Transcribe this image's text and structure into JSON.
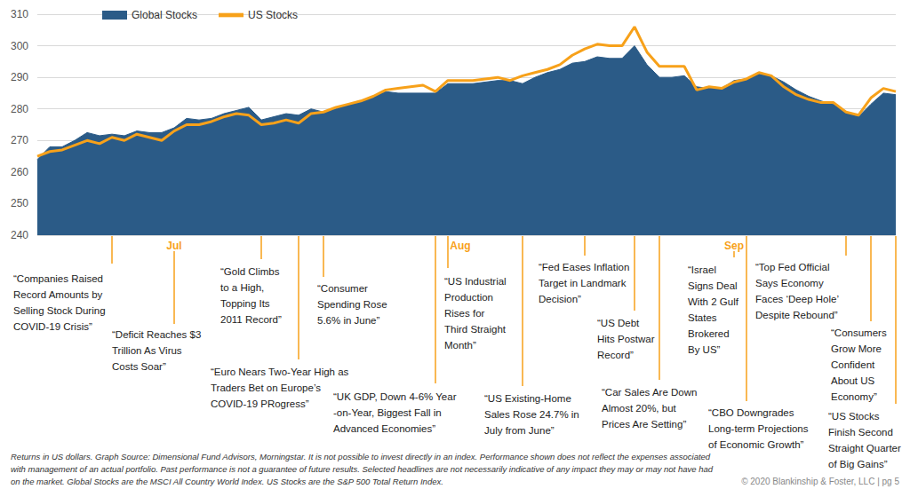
{
  "chart_data": {
    "type": "line",
    "categories": [
      null,
      null,
      null,
      null,
      null,
      null,
      null,
      null,
      null,
      null,
      null,
      "Jul",
      null,
      null,
      null,
      null,
      null,
      null,
      null,
      null,
      null,
      null,
      null,
      null,
      null,
      null,
      null,
      null,
      null,
      null,
      null,
      null,
      null,
      null,
      "Aug",
      null,
      null,
      null,
      null,
      null,
      null,
      null,
      null,
      null,
      null,
      null,
      null,
      null,
      null,
      null,
      null,
      null,
      null,
      null,
      null,
      null,
      "Sep",
      null,
      null,
      null,
      null,
      null,
      null,
      null,
      null,
      null,
      null,
      null,
      null,
      null
    ],
    "series": [
      {
        "name": "Global Stocks",
        "type": "area",
        "color": "#2b5b87",
        "values": [
          264,
          268,
          268,
          270,
          272.5,
          271.5,
          272,
          271.5,
          273,
          272.5,
          272.5,
          274,
          277,
          276.5,
          277,
          278.5,
          279.5,
          280.5,
          276.5,
          277.5,
          278.5,
          278,
          280,
          279,
          280,
          281.5,
          282.5,
          284,
          285.5,
          285,
          285,
          285,
          285,
          288,
          288,
          288,
          288.5,
          289,
          289,
          288,
          290,
          291.5,
          292.5,
          294.5,
          295,
          296.5,
          296,
          296,
          300,
          294,
          290,
          290,
          290.5,
          287,
          286.5,
          286.5,
          289,
          289.5,
          291,
          290.5,
          288.5,
          286,
          284,
          282.5,
          281.5,
          279,
          277.5,
          281.5,
          285,
          284.5
        ]
      },
      {
        "name": "US Stocks",
        "type": "line",
        "color": "#f7a11a",
        "values": [
          265,
          266.5,
          267,
          268.5,
          270,
          269,
          271,
          270,
          272,
          271,
          270,
          273,
          275,
          275,
          276,
          277.5,
          278.5,
          278,
          275,
          275.5,
          276.5,
          275.5,
          278.5,
          279,
          280.5,
          281.5,
          282.5,
          284,
          286,
          286.5,
          287,
          287.5,
          285.5,
          289,
          289,
          289,
          289.5,
          290,
          289,
          290.5,
          291.5,
          292.5,
          294,
          297,
          299,
          300.5,
          300,
          300,
          306,
          298,
          293.5,
          293.5,
          293.5,
          286,
          287,
          286.5,
          288.5,
          289.5,
          291.5,
          290.5,
          287,
          284.5,
          283,
          282,
          282,
          279,
          278,
          283.5,
          286.5,
          285.5
        ]
      }
    ],
    "ylim": [
      240,
      310
    ],
    "yticks": [
      240,
      250,
      260,
      270,
      280,
      290,
      300,
      310
    ],
    "grid": true,
    "legend": "top-left",
    "annotations": [
      {
        "at": 6,
        "lines": [
          "“Companies Raised",
          "Record Amounts by",
          "Selling Stock During",
          "COVID-19 Crisis”"
        ]
      },
      {
        "at": 11,
        "lines": [
          "“Deficit Reaches $3",
          "Trillion As Virus",
          "Costs Soar”"
        ]
      },
      {
        "at": 18,
        "lines": [
          "“Gold Climbs",
          "to a High,",
          "Topping Its",
          "2011 Record”"
        ]
      },
      {
        "at": 21,
        "lines": [
          "“Euro Nears Two-Year High as",
          "Traders Bet on Europe’s",
          "COVID-19 PRogress”"
        ]
      },
      {
        "at": 23,
        "lines": [
          "“Consumer",
          "Spending Rose",
          "5.6% in June”"
        ]
      },
      {
        "at": 32,
        "lines": [
          "“UK GDP, Down 4-6% Year",
          "-on-Year, Biggest Fall in",
          "Advanced Economies”"
        ]
      },
      {
        "at": 33,
        "lines": [
          "“US Industrial",
          "Production",
          "Rises for",
          "Third Straight",
          "Month”"
        ]
      },
      {
        "at": 39,
        "lines": [
          "“US Existing-Home",
          "Sales Rose 24.7% in",
          "July from June”"
        ]
      },
      {
        "at": 44,
        "lines": [
          "“Fed Eases Inflation",
          "Target in Landmark",
          "Decision”"
        ]
      },
      {
        "at": 48,
        "lines": [
          "“US Debt",
          "Hits Postwar",
          "Record”"
        ]
      },
      {
        "at": 50,
        "lines": [
          "“Car Sales Are Down",
          "Almost 20%, but",
          "Prices Are Setting”"
        ]
      },
      {
        "at": 56,
        "lines": [
          "“Israel",
          "Signs Deal",
          "With 2 Gulf",
          "States",
          "Brokered",
          "By US”"
        ]
      },
      {
        "at": 57,
        "lines": [
          "“CBO Downgrades",
          "Long-term Projections",
          "of Economic Growth”"
        ]
      },
      {
        "at": 65,
        "lines": [
          "“Top Fed Official",
          "Says Economy",
          "Faces ‘Deep Hole’",
          "Despite Rebound”"
        ]
      },
      {
        "at": 67,
        "lines": [
          "“Consumers",
          "Grow More",
          "Confident",
          "About US",
          "Economy”"
        ]
      },
      {
        "at": 69,
        "lines": [
          "“US Stocks",
          "Finish Second",
          "Straight Quarter",
          "of Big Gains”"
        ]
      }
    ]
  },
  "footnote": [
    "Returns in US dollars. Graph Source: Dimensional Fund Advisors, Morningstar. It is not possible to invest directly in an index. Performance shown does not reflect the expenses associated",
    "with management of an actual portfolio. Past performance is not a guarantee of future results. Selected headlines are not necessarily indicative of any impact they may or may not have had",
    "on the market. Global Stocks are the MSCI All Country World Index. US Stocks are the S&P 500 Total Return Index."
  ],
  "copyright": "© 2020 Blankinship & Foster, LLC | pg 5"
}
